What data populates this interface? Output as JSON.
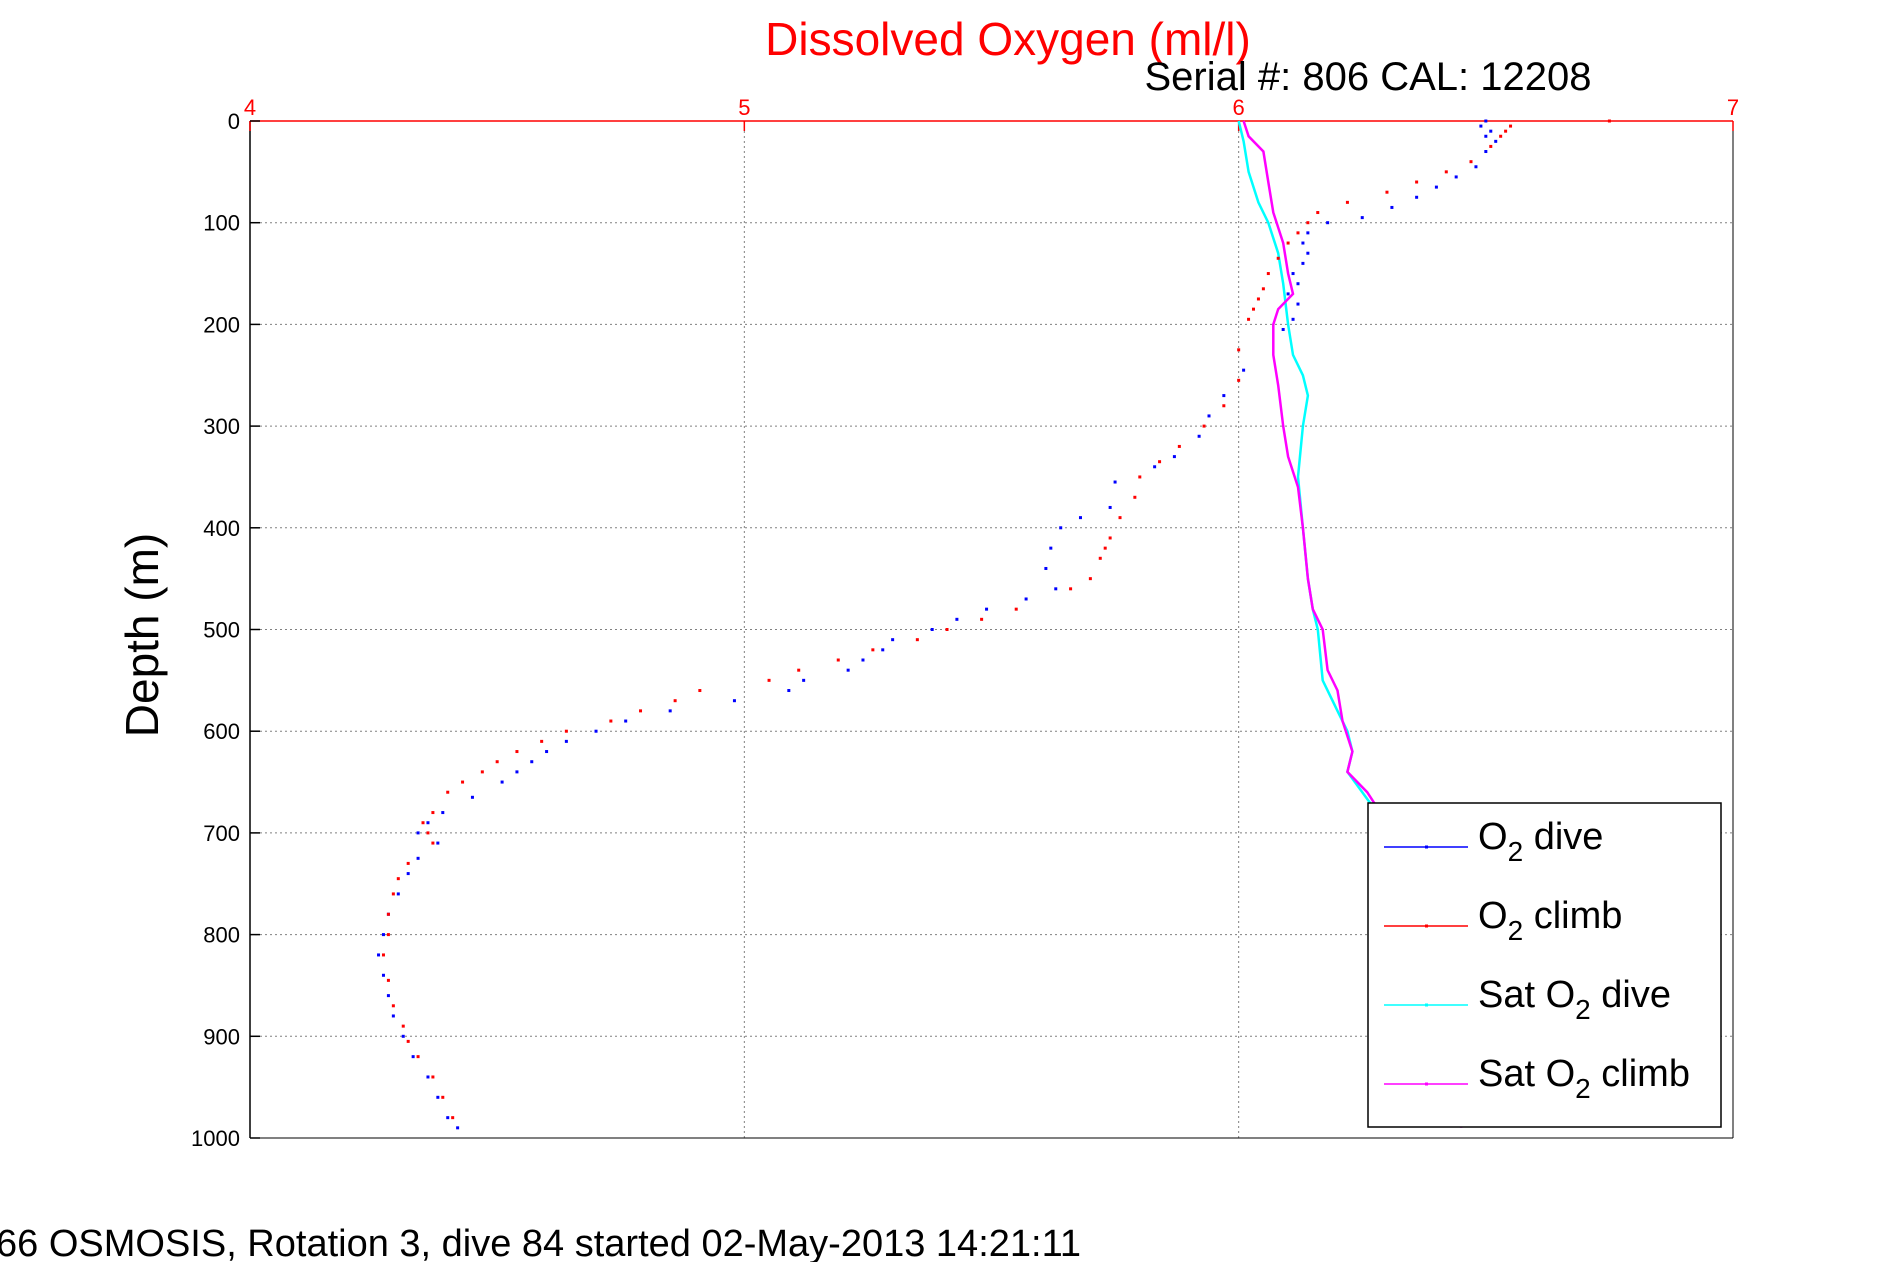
{
  "chart_data": {
    "type": "scatter",
    "title": "Dissolved Oxygen (ml/l)",
    "subtitle": "Serial #: 806  CAL: 12208",
    "footer": "66 OSMOSIS, Rotation 3, dive 84 started 02-May-2013 14:21:11",
    "xlabel": "",
    "ylabel": "Depth (m)",
    "xlim": [
      4,
      7
    ],
    "ylim": [
      0,
      1000
    ],
    "y_reversed": true,
    "x_axis_position": "top",
    "xticks": [
      "4",
      "5",
      "6",
      "7"
    ],
    "yticks": [
      "0",
      "100",
      "200",
      "300",
      "400",
      "500",
      "600",
      "700",
      "800",
      "900",
      "1000"
    ],
    "grid": true,
    "legend_position": "bottom-right",
    "colors": {
      "title": "#ff0000",
      "axis_top": "#ff0000",
      "axis": "#000000",
      "grid": "#888888"
    },
    "series": [
      {
        "name": "O2 dive",
        "legend_label": [
          "O",
          "2",
          " dive"
        ],
        "color": "#0000ff",
        "style": "dots",
        "points": [
          [
            6.5,
            0
          ],
          [
            6.49,
            5
          ],
          [
            6.51,
            10
          ],
          [
            6.5,
            15
          ],
          [
            6.52,
            20
          ],
          [
            6.5,
            30
          ],
          [
            6.48,
            45
          ],
          [
            6.44,
            55
          ],
          [
            6.4,
            65
          ],
          [
            6.36,
            75
          ],
          [
            6.31,
            85
          ],
          [
            6.25,
            95
          ],
          [
            6.18,
            100
          ],
          [
            6.14,
            110
          ],
          [
            6.13,
            120
          ],
          [
            6.14,
            130
          ],
          [
            6.13,
            140
          ],
          [
            6.11,
            150
          ],
          [
            6.12,
            160
          ],
          [
            6.1,
            170
          ],
          [
            6.12,
            180
          ],
          [
            6.11,
            195
          ],
          [
            6.09,
            205
          ],
          [
            6.01,
            245
          ],
          [
            5.97,
            270
          ],
          [
            5.94,
            290
          ],
          [
            5.92,
            310
          ],
          [
            5.87,
            330
          ],
          [
            5.83,
            340
          ],
          [
            5.75,
            355
          ],
          [
            5.74,
            380
          ],
          [
            5.68,
            390
          ],
          [
            5.64,
            400
          ],
          [
            5.62,
            420
          ],
          [
            5.61,
            440
          ],
          [
            5.63,
            460
          ],
          [
            5.57,
            470
          ],
          [
            5.49,
            480
          ],
          [
            5.43,
            490
          ],
          [
            5.38,
            500
          ],
          [
            5.3,
            510
          ],
          [
            5.28,
            520
          ],
          [
            5.24,
            530
          ],
          [
            5.21,
            540
          ],
          [
            5.12,
            550
          ],
          [
            5.09,
            560
          ],
          [
            4.98,
            570
          ],
          [
            4.85,
            580
          ],
          [
            4.76,
            590
          ],
          [
            4.7,
            600
          ],
          [
            4.64,
            610
          ],
          [
            4.6,
            620
          ],
          [
            4.57,
            630
          ],
          [
            4.54,
            640
          ],
          [
            4.51,
            650
          ],
          [
            4.45,
            665
          ],
          [
            4.39,
            680
          ],
          [
            4.36,
            690
          ],
          [
            4.34,
            700
          ],
          [
            4.38,
            710
          ],
          [
            4.34,
            725
          ],
          [
            4.32,
            740
          ],
          [
            4.3,
            760
          ],
          [
            4.28,
            780
          ],
          [
            4.27,
            800
          ],
          [
            4.26,
            820
          ],
          [
            4.27,
            840
          ],
          [
            4.28,
            860
          ],
          [
            4.29,
            880
          ],
          [
            4.31,
            900
          ],
          [
            4.33,
            920
          ],
          [
            4.36,
            940
          ],
          [
            4.38,
            960
          ],
          [
            4.4,
            980
          ],
          [
            4.42,
            990
          ]
        ]
      },
      {
        "name": "O2 climb",
        "legend_label": [
          "O",
          "2",
          " climb"
        ],
        "color": "#ff0000",
        "style": "dots",
        "points": [
          [
            6.75,
            0
          ],
          [
            6.55,
            5
          ],
          [
            6.54,
            10
          ],
          [
            6.53,
            15
          ],
          [
            6.51,
            25
          ],
          [
            6.47,
            40
          ],
          [
            6.42,
            50
          ],
          [
            6.36,
            60
          ],
          [
            6.3,
            70
          ],
          [
            6.22,
            80
          ],
          [
            6.16,
            90
          ],
          [
            6.14,
            100
          ],
          [
            6.12,
            110
          ],
          [
            6.1,
            120
          ],
          [
            6.08,
            135
          ],
          [
            6.06,
            150
          ],
          [
            6.05,
            165
          ],
          [
            6.04,
            175
          ],
          [
            6.03,
            185
          ],
          [
            6.02,
            195
          ],
          [
            6.0,
            225
          ],
          [
            6.0,
            255
          ],
          [
            5.97,
            280
          ],
          [
            5.93,
            300
          ],
          [
            5.88,
            320
          ],
          [
            5.84,
            335
          ],
          [
            5.8,
            350
          ],
          [
            5.79,
            370
          ],
          [
            5.76,
            390
          ],
          [
            5.74,
            410
          ],
          [
            5.73,
            420
          ],
          [
            5.72,
            430
          ],
          [
            5.7,
            450
          ],
          [
            5.66,
            460
          ],
          [
            5.55,
            480
          ],
          [
            5.48,
            490
          ],
          [
            5.41,
            500
          ],
          [
            5.35,
            510
          ],
          [
            5.26,
            520
          ],
          [
            5.19,
            530
          ],
          [
            5.11,
            540
          ],
          [
            5.05,
            550
          ],
          [
            4.91,
            560
          ],
          [
            4.86,
            570
          ],
          [
            4.79,
            580
          ],
          [
            4.73,
            590
          ],
          [
            4.64,
            600
          ],
          [
            4.59,
            610
          ],
          [
            4.54,
            620
          ],
          [
            4.5,
            630
          ],
          [
            4.47,
            640
          ],
          [
            4.43,
            650
          ],
          [
            4.4,
            660
          ],
          [
            4.37,
            680
          ],
          [
            4.35,
            690
          ],
          [
            4.36,
            700
          ],
          [
            4.37,
            710
          ],
          [
            4.32,
            730
          ],
          [
            4.3,
            745
          ],
          [
            4.29,
            760
          ],
          [
            4.28,
            780
          ],
          [
            4.28,
            800
          ],
          [
            4.27,
            820
          ],
          [
            4.28,
            845
          ],
          [
            4.29,
            870
          ],
          [
            4.31,
            890
          ],
          [
            4.32,
            905
          ],
          [
            4.34,
            920
          ],
          [
            4.37,
            940
          ],
          [
            4.39,
            960
          ],
          [
            4.41,
            980
          ]
        ]
      },
      {
        "name": "Sat O2 dive",
        "legend_label": [
          "Sat O",
          "2",
          " dive"
        ],
        "color": "#00ffff",
        "style": "line",
        "points": [
          [
            6.0,
            0
          ],
          [
            6.01,
            20
          ],
          [
            6.02,
            50
          ],
          [
            6.04,
            80
          ],
          [
            6.06,
            100
          ],
          [
            6.08,
            130
          ],
          [
            6.09,
            160
          ],
          [
            6.1,
            200
          ],
          [
            6.11,
            230
          ],
          [
            6.13,
            250
          ],
          [
            6.14,
            270
          ],
          [
            6.13,
            300
          ],
          [
            6.12,
            350
          ],
          [
            6.13,
            400
          ],
          [
            6.14,
            450
          ],
          [
            6.15,
            480
          ],
          [
            6.16,
            500
          ],
          [
            6.17,
            550
          ],
          [
            6.2,
            580
          ],
          [
            6.22,
            600
          ],
          [
            6.23,
            620
          ],
          [
            6.22,
            640
          ],
          [
            6.25,
            660
          ],
          [
            6.28,
            680
          ],
          [
            6.32,
            700
          ],
          [
            6.35,
            720
          ]
        ]
      },
      {
        "name": "Sat O2 climb",
        "legend_label": [
          "Sat O",
          "2",
          " climb"
        ],
        "color": "#ff00ff",
        "style": "line",
        "points": [
          [
            6.01,
            0
          ],
          [
            6.02,
            15
          ],
          [
            6.05,
            30
          ],
          [
            6.06,
            60
          ],
          [
            6.07,
            90
          ],
          [
            6.09,
            120
          ],
          [
            6.1,
            150
          ],
          [
            6.11,
            170
          ],
          [
            6.08,
            185
          ],
          [
            6.07,
            200
          ],
          [
            6.07,
            230
          ],
          [
            6.08,
            260
          ],
          [
            6.09,
            300
          ],
          [
            6.1,
            330
          ],
          [
            6.12,
            360
          ],
          [
            6.13,
            400
          ],
          [
            6.14,
            450
          ],
          [
            6.15,
            480
          ],
          [
            6.17,
            500
          ],
          [
            6.18,
            540
          ],
          [
            6.2,
            560
          ],
          [
            6.21,
            590
          ],
          [
            6.23,
            620
          ],
          [
            6.22,
            640
          ],
          [
            6.26,
            660
          ],
          [
            6.3,
            690
          ],
          [
            6.38,
            720
          ],
          [
            6.44,
            760
          ],
          [
            6.45,
            800
          ],
          [
            6.45,
            850
          ],
          [
            6.45,
            900
          ],
          [
            6.45,
            950
          ],
          [
            6.45,
            990
          ]
        ]
      }
    ]
  }
}
